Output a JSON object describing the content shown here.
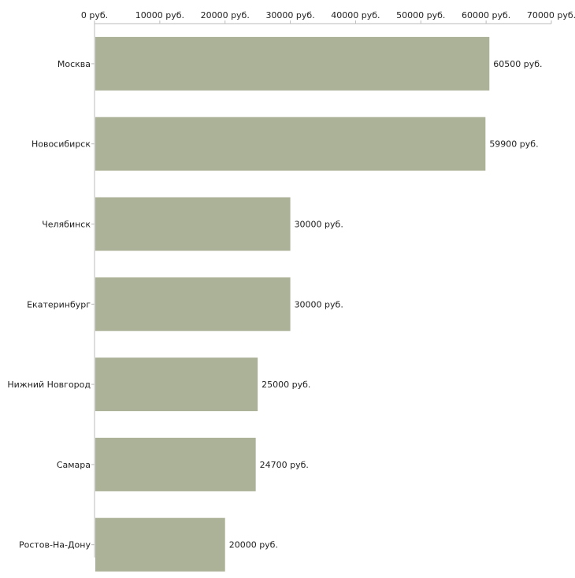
{
  "chart_data": {
    "type": "bar",
    "orientation": "horizontal",
    "title": "",
    "xlabel": "",
    "ylabel": "",
    "categories": [
      "Москва",
      "Новосибирск",
      "Челябинск",
      "Екатеринбург",
      "Нижний Новгород",
      "Самара",
      "Ростов-На-Дону"
    ],
    "values": [
      60500,
      59900,
      30000,
      30000,
      25000,
      24700,
      20000
    ],
    "value_labels": [
      "60500 руб.",
      "59900 руб.",
      "30000 руб.",
      "30000 руб.",
      "25000 руб.",
      "24700 руб.",
      "20000 руб."
    ],
    "xlim": [
      0,
      70000
    ],
    "x_ticks": [
      0,
      10000,
      20000,
      30000,
      40000,
      50000,
      60000,
      70000
    ],
    "x_tick_labels": [
      "0 руб.",
      "10000 руб.",
      "20000 руб.",
      "30000 руб.",
      "40000 руб.",
      "50000 руб.",
      "60000 руб.",
      "70000 руб."
    ],
    "axis_position": "top",
    "grid": false,
    "legend": "none"
  },
  "colors": {
    "bar": "#acb297",
    "axis": "#bbbbbb",
    "text": "#222222"
  }
}
